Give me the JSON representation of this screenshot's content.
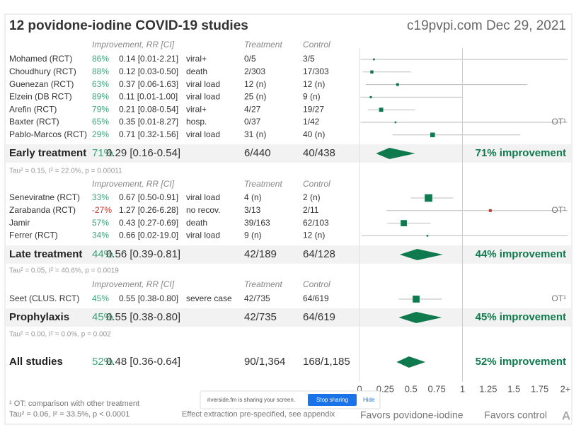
{
  "chart_data": {
    "type": "forest",
    "title": "12 povidone-iodine COVID-19 studies",
    "source": "c19pvpi.com Dec 29, 2021",
    "xlim": [
      0,
      2
    ],
    "xticks": [
      0,
      0.25,
      0.5,
      0.75,
      1,
      1.25,
      1.5,
      1.75,
      {
        "value": 2,
        "label": "2+"
      }
    ],
    "xlabel_left": "Favors povidone-iodine",
    "xlabel_right": "Favors control",
    "groups": [
      {
        "header": {
          "improvement": "Improvement, RR [CI]",
          "treatment": "Treatment",
          "control": "Control"
        },
        "studies": [
          {
            "name": "Mohamed (RCT)",
            "improvement": "86%",
            "rr_label": "0.14 [0.01-2.21]",
            "rr": 0.14,
            "ci": [
              0.01,
              2.21
            ],
            "outcome": "viral+",
            "treatment": "0/5",
            "control": "3/5"
          },
          {
            "name": "Choudhury (RCT)",
            "improvement": "88%",
            "rr_label": "0.12 [0.03-0.50]",
            "rr": 0.12,
            "ci": [
              0.03,
              0.5
            ],
            "outcome": "death",
            "treatment": "2/303",
            "control": "17/303"
          },
          {
            "name": "Guenezan (RCT)",
            "improvement": "63%",
            "rr_label": "0.37 [0.06-1.63]",
            "rr": 0.37,
            "ci": [
              0.06,
              1.63
            ],
            "outcome": "viral load",
            "treatment": "12 (n)",
            "control": "12 (n)"
          },
          {
            "name": "Elzein (DB RCT)",
            "improvement": "89%",
            "rr_label": "0.11 [0.01-1.00]",
            "rr": 0.11,
            "ci": [
              0.01,
              1
            ],
            "outcome": "viral load",
            "treatment": "25 (n)",
            "control": "9 (n)"
          },
          {
            "name": "Arefin (RCT)",
            "improvement": "79%",
            "rr_label": "0.21 [0.08-0.54]",
            "rr": 0.21,
            "ci": [
              0.08,
              0.54
            ],
            "outcome": "viral+",
            "treatment": "4/27",
            "control": "19/27"
          },
          {
            "name": "Baxter (RCT)",
            "improvement": "65%",
            "rr_label": "0.35 [0.01-8.27]",
            "rr": 0.35,
            "ci": [
              0.01,
              8.27
            ],
            "outcome": "hosp.",
            "treatment": "0/37",
            "control": "1/42",
            "note": "OT¹"
          },
          {
            "name": "Pablo-Marcos (RCT)",
            "improvement": "29%",
            "rr_label": "0.71 [0.32-1.56]",
            "rr": 0.71,
            "ci": [
              0.32,
              1.56
            ],
            "outcome": "viral load",
            "treatment": "31 (n)",
            "control": "40 (n)"
          }
        ],
        "summary": {
          "name": "Early treatment",
          "improvement": "71%",
          "rr_label": "0.29 [0.16-0.54]",
          "rr": 0.29,
          "ci": [
            0.16,
            0.54
          ],
          "treatment": "6/440",
          "control": "40/438",
          "result": "71% improvement"
        },
        "stats": "Tau² = 0.15, I² = 22.0%, p = 0.00011"
      },
      {
        "header": {
          "improvement": "Improvement, RR [CI]",
          "treatment": "Treatment",
          "control": "Control"
        },
        "studies": [
          {
            "name": "Seneviratne (RCT)",
            "improvement": "33%",
            "rr_label": "0.67 [0.50-0.91]",
            "rr": 0.67,
            "ci": [
              0.5,
              0.91
            ],
            "outcome": "viral load",
            "treatment": "4 (n)",
            "control": "2 (n)"
          },
          {
            "name": "Zarabanda (RCT)",
            "improvement": "-27%",
            "rr_label": "1.27 [0.26-6.28]",
            "rr": 1.27,
            "ci": [
              0.26,
              6.28
            ],
            "outcome": "no recov.",
            "treatment": "3/13",
            "control": "2/11",
            "note": "OT¹"
          },
          {
            "name": "Jamir",
            "improvement": "57%",
            "rr_label": "0.43 [0.27-0.69]",
            "rr": 0.43,
            "ci": [
              0.27,
              0.69
            ],
            "outcome": "death",
            "treatment": "39/163",
            "control": "62/103"
          },
          {
            "name": "Ferrer (RCT)",
            "improvement": "34%",
            "rr_label": "0.66 [0.02-19.0]",
            "rr": 0.66,
            "ci": [
              0.02,
              19
            ],
            "outcome": "viral load",
            "treatment": "9 (n)",
            "control": "12 (n)"
          }
        ],
        "summary": {
          "name": "Late treatment",
          "improvement": "44%",
          "rr_label": "0.56 [0.39-0.81]",
          "rr": 0.56,
          "ci": [
            0.39,
            0.81
          ],
          "treatment": "42/189",
          "control": "64/128",
          "result": "44% improvement"
        },
        "stats": "Tau² = 0.05, I² = 40.6%, p = 0.0019"
      },
      {
        "header": {
          "improvement": "Improvement, RR [CI]",
          "treatment": "Treatment",
          "control": "Control"
        },
        "studies": [
          {
            "name": "Seet (CLUS. RCT)",
            "improvement": "45%",
            "rr_label": "0.55 [0.38-0.80]",
            "rr": 0.55,
            "ci": [
              0.38,
              0.8
            ],
            "outcome": "severe case",
            "treatment": "42/735",
            "control": "64/619",
            "note": "OT¹"
          }
        ],
        "summary": {
          "name": "Prophylaxis",
          "improvement": "45%",
          "rr_label": "0.55 [0.38-0.80]",
          "rr": 0.55,
          "ci": [
            0.38,
            0.8
          ],
          "treatment": "42/735",
          "control": "64/619",
          "result": "45% improvement"
        },
        "stats": "Tau² = 0.00, I² = 0.0%, p = 0.002"
      }
    ],
    "overall": {
      "name": "All studies",
      "improvement": "52%",
      "rr_label": "0.48 [0.36-0.64]",
      "rr": 0.48,
      "ci": [
        0.36,
        0.64
      ],
      "treatment": "90/1,364",
      "control": "168/1,185",
      "result": "52% improvement"
    },
    "footnotes": [
      "¹ OT: comparison with other treatment",
      "Tau² = 0.06, I² = 33.5%, p < 0.0001"
    ],
    "method_note": "Effect extraction pre-specified, see appendix",
    "logo": "A"
  },
  "share_banner": {
    "message": "riverside.fm is sharing your screen.",
    "stop": "Stop sharing",
    "hide": "Hide"
  }
}
